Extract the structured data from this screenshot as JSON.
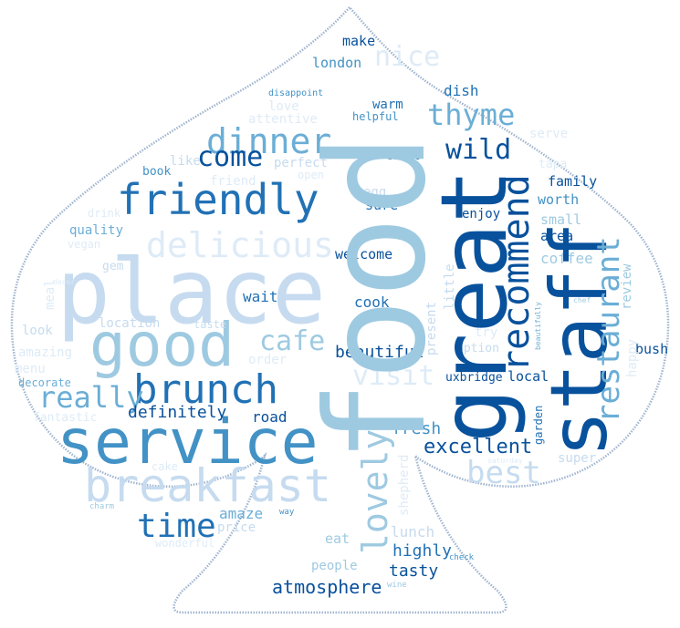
{
  "wordcloud": {
    "palette": {
      "c1": "#08519c",
      "c2": "#2171b5",
      "c3": "#4292c6",
      "c4": "#6baed6",
      "c5": "#9ecae1",
      "c6": "#c6dbef",
      "c7": "#deebf7",
      "outline": "#7f9cc0"
    },
    "words": [
      "food",
      "great",
      "place",
      "service",
      "staff",
      "good",
      "breakfast",
      "friendly",
      "recommend",
      "brunch",
      "delicious",
      "dinner",
      "lovely",
      "restaurant",
      "really",
      "time",
      "thyme",
      "best",
      "wild",
      "come",
      "excellent",
      "visit",
      "nice",
      "cafe",
      "atmosphere",
      "fresh",
      "definitely",
      "amaze",
      "beautiful",
      "highly",
      "tasty",
      "lunch",
      "wait",
      "coffee",
      "cook",
      "welcome",
      "location",
      "area",
      "small",
      "road",
      "family",
      "local",
      "enjoy",
      "uxbridge",
      "quality",
      "dish",
      "make",
      "london",
      "warm",
      "worth",
      "sure",
      "egg",
      "perfect",
      "people",
      "eat",
      "price",
      "amazing",
      "look",
      "taste",
      "option",
      "bush",
      "super",
      "gem",
      "book",
      "like",
      "love",
      "attentive",
      "helpful",
      "disappoint",
      "owner",
      "decide",
      "serve",
      "tapa",
      "review",
      "happy",
      "menu",
      "decorate",
      "fantastic",
      "meal",
      "vegan",
      "drink",
      "friend",
      "garden",
      "shepherd",
      "present",
      "little",
      "try",
      "check",
      "wine",
      "charm",
      "way",
      "wonderful",
      "saturday",
      "chef",
      "beautifully",
      "order",
      "decor",
      "cake",
      "open"
    ]
  }
}
